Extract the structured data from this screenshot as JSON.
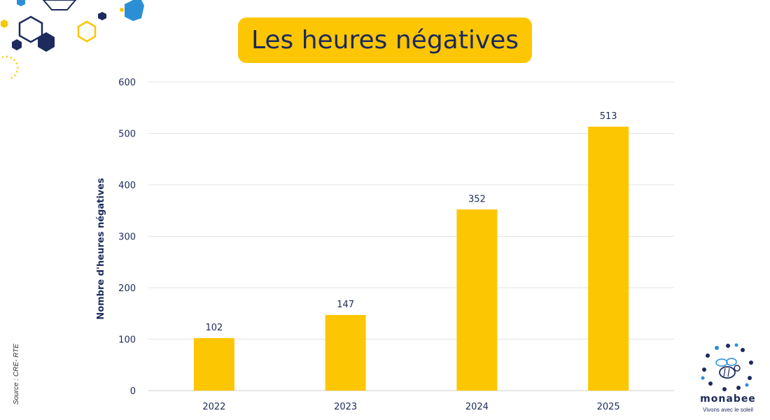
{
  "header": {
    "title": "Les heures négatives"
  },
  "footer": {
    "source": "Source : CRE- RTE"
  },
  "logo": {
    "brand": "monabee",
    "tagline": "Vivons avec le soleil"
  },
  "colors": {
    "bar": "#fcc603",
    "text": "#1d2a5c",
    "grid": "#e3e3e3",
    "deco_navy": "#1d2a5c",
    "deco_blue": "#2b8fd6",
    "deco_yellow": "#fcc603"
  },
  "chart_data": {
    "type": "bar",
    "title": "",
    "categories": [
      "2022",
      "2023",
      "2024",
      "2025"
    ],
    "values": [
      102,
      147,
      352,
      513
    ],
    "data_labels": [
      "102",
      "147",
      "352",
      "513"
    ],
    "xlabel": "",
    "ylabel": "Nombre d'heures négatives",
    "ylim": [
      0,
      600
    ],
    "yticks": [
      "0",
      "100",
      "200",
      "300",
      "400",
      "500",
      "600"
    ],
    "grid": true,
    "legend": "none"
  }
}
